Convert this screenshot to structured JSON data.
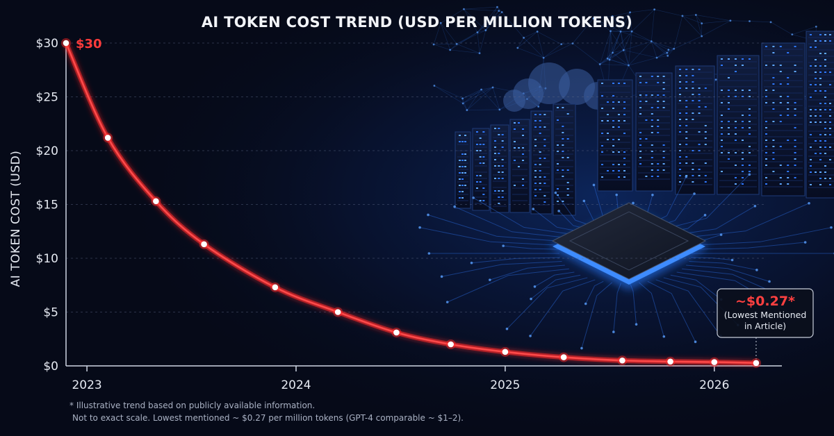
{
  "chart_data": {
    "type": "line",
    "title": "AI TOKEN COST TREND (USD PER MILLION TOKENS)",
    "ylabel": "AI TOKEN COST (USD)",
    "xlabel": "",
    "x_ticks": [
      {
        "label": "2023",
        "x": 2023.0
      },
      {
        "label": "2024",
        "x": 2024.0
      },
      {
        "label": "2025",
        "x": 2025.0
      },
      {
        "label": "2026",
        "x": 2026.0
      }
    ],
    "y_ticks": [
      {
        "label": "$0",
        "y": 0
      },
      {
        "label": "$5",
        "y": 5
      },
      {
        "label": "$10",
        "y": 10
      },
      {
        "label": "$15",
        "y": 15
      },
      {
        "label": "$20",
        "y": 20
      },
      {
        "label": "$25",
        "y": 25
      },
      {
        "label": "$30",
        "y": 30
      }
    ],
    "xlim": [
      2022.9,
      2026.25
    ],
    "ylim": [
      0,
      30
    ],
    "grid": "horizontal dashed",
    "series": [
      {
        "color": "#ff2a2a",
        "points": [
          {
            "x": 2022.9,
            "y": 30
          },
          {
            "x": 2023.1,
            "y": 21.2
          },
          {
            "x": 2023.33,
            "y": 15.3
          },
          {
            "x": 2023.56,
            "y": 11.3
          },
          {
            "x": 2023.9,
            "y": 7.3
          },
          {
            "x": 2024.2,
            "y": 5.0
          },
          {
            "x": 2024.48,
            "y": 3.1
          },
          {
            "x": 2024.74,
            "y": 2.0
          },
          {
            "x": 2025.0,
            "y": 1.3
          },
          {
            "x": 2025.28,
            "y": 0.8
          },
          {
            "x": 2025.56,
            "y": 0.5
          },
          {
            "x": 2025.79,
            "y": 0.4
          },
          {
            "x": 2026.0,
            "y": 0.35
          },
          {
            "x": 2026.2,
            "y": 0.27
          }
        ]
      }
    ],
    "annotations": [
      {
        "text": "$30",
        "x": 2022.9,
        "y": 30
      },
      {
        "text": "~$0.27*",
        "subtext": [
          "(Lowest Mentioned",
          "in Article)"
        ],
        "x": 2026.2,
        "y": 0.27
      }
    ],
    "footnote": [
      "* Illustrative trend based on publicly available information.",
      "Not to exact scale. Lowest mentioned ~ $0.27 per million tokens (GPT-4 comparable ~ $1–2)."
    ]
  }
}
